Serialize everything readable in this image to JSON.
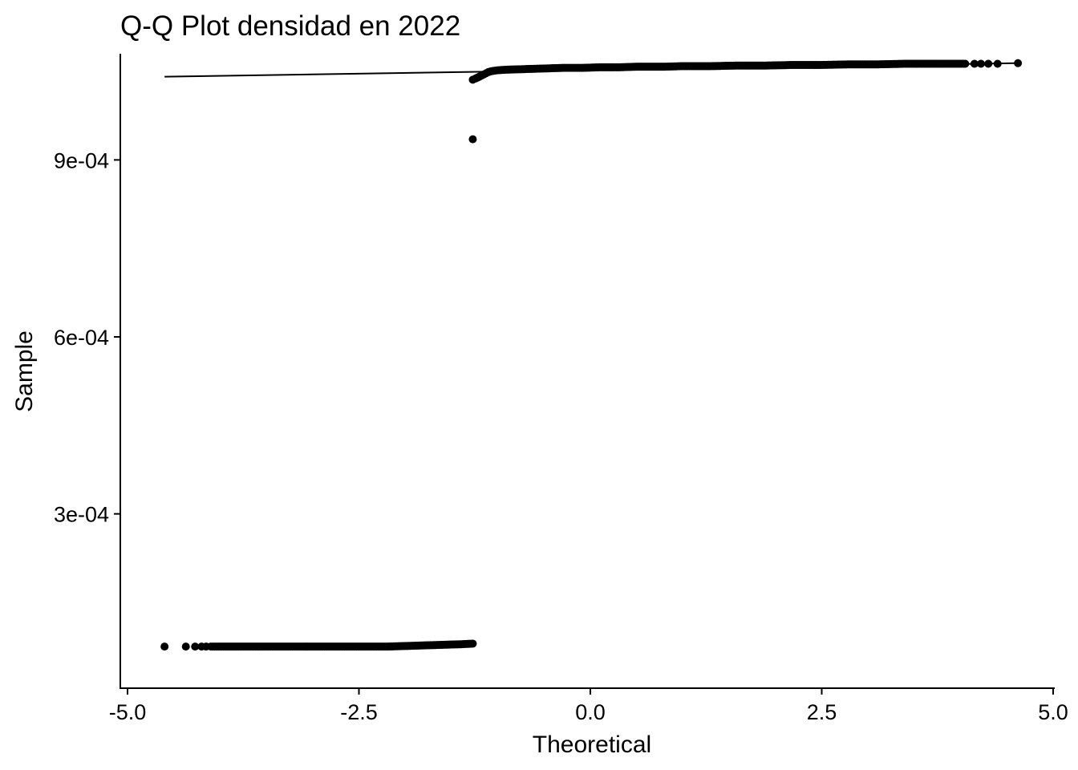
{
  "chart_data": {
    "type": "scatter",
    "title": "Q-Q Plot densidad en 2022",
    "xlabel": "Theoretical",
    "ylabel": "Sample",
    "xlim": [
      -5.0,
      5.0
    ],
    "ylim": [
      4.5e-06,
      0.00108
    ],
    "x_ticks": [
      -5.0,
      -2.5,
      0.0,
      2.5,
      5.0
    ],
    "x_tick_labels": [
      "-5.0",
      "-2.5",
      "0.0",
      "2.5",
      "5.0"
    ],
    "y_ticks": [
      0.0003,
      0.0006,
      0.0009
    ],
    "y_tick_labels": [
      "3e-04",
      "6e-04",
      "9e-04"
    ],
    "grid": false,
    "point_color": "#000000",
    "reference_line": {
      "x": [
        -4.6,
        4.6
      ],
      "y": [
        0.001041,
        0.001064
      ]
    },
    "series": [
      {
        "points": [
          [
            -4.6,
            7.5e-05
          ],
          [
            -4.37,
            7.5e-05
          ],
          [
            -4.27,
            7.5e-05
          ],
          [
            -4.2,
            7.5e-05
          ],
          [
            -4.15,
            7.5e-05
          ],
          [
            -4.1,
            7.5e-05
          ],
          [
            -4.0,
            7.5e-05
          ],
          [
            -3.8,
            7.5e-05
          ],
          [
            -3.6,
            7.5e-05
          ],
          [
            -3.4,
            7.5e-05
          ],
          [
            -3.2,
            7.5e-05
          ],
          [
            -3.0,
            7.5e-05
          ],
          [
            -2.8,
            7.5e-05
          ],
          [
            -2.6,
            7.5e-05
          ],
          [
            -2.4,
            7.5e-05
          ],
          [
            -2.2,
            7.5e-05
          ],
          [
            -2.0,
            7.6e-05
          ],
          [
            -1.8,
            7.7e-05
          ],
          [
            -1.6,
            7.8e-05
          ],
          [
            -1.4,
            7.9e-05
          ],
          [
            -1.27,
            8e-05
          ],
          [
            -1.27,
            0.000935
          ],
          [
            -1.27,
            0.001036
          ],
          [
            -1.24,
            0.001038
          ],
          [
            -1.2,
            0.001041
          ],
          [
            -1.15,
            0.001045
          ],
          [
            -1.1,
            0.001049
          ],
          [
            -1.05,
            0.001051
          ],
          [
            -1.0,
            0.001052
          ],
          [
            -0.9,
            0.001053
          ],
          [
            -0.7,
            0.001054
          ],
          [
            -0.5,
            0.001055
          ],
          [
            -0.3,
            0.001056
          ],
          [
            -0.1,
            0.001056
          ],
          [
            0.1,
            0.001057
          ],
          [
            0.3,
            0.001057
          ],
          [
            0.5,
            0.001058
          ],
          [
            0.8,
            0.001058
          ],
          [
            1.0,
            0.001059
          ],
          [
            1.3,
            0.001059
          ],
          [
            1.6,
            0.00106
          ],
          [
            1.9,
            0.00106
          ],
          [
            2.2,
            0.001061
          ],
          [
            2.5,
            0.001061
          ],
          [
            2.8,
            0.001062
          ],
          [
            3.1,
            0.001062
          ],
          [
            3.4,
            0.001063
          ],
          [
            3.7,
            0.001063
          ],
          [
            3.9,
            0.001063
          ],
          [
            4.05,
            0.001063
          ],
          [
            4.15,
            0.001063
          ],
          [
            4.22,
            0.001063
          ],
          [
            4.3,
            0.001063
          ],
          [
            4.4,
            0.001063
          ],
          [
            4.62,
            0.001064
          ]
        ]
      }
    ]
  }
}
